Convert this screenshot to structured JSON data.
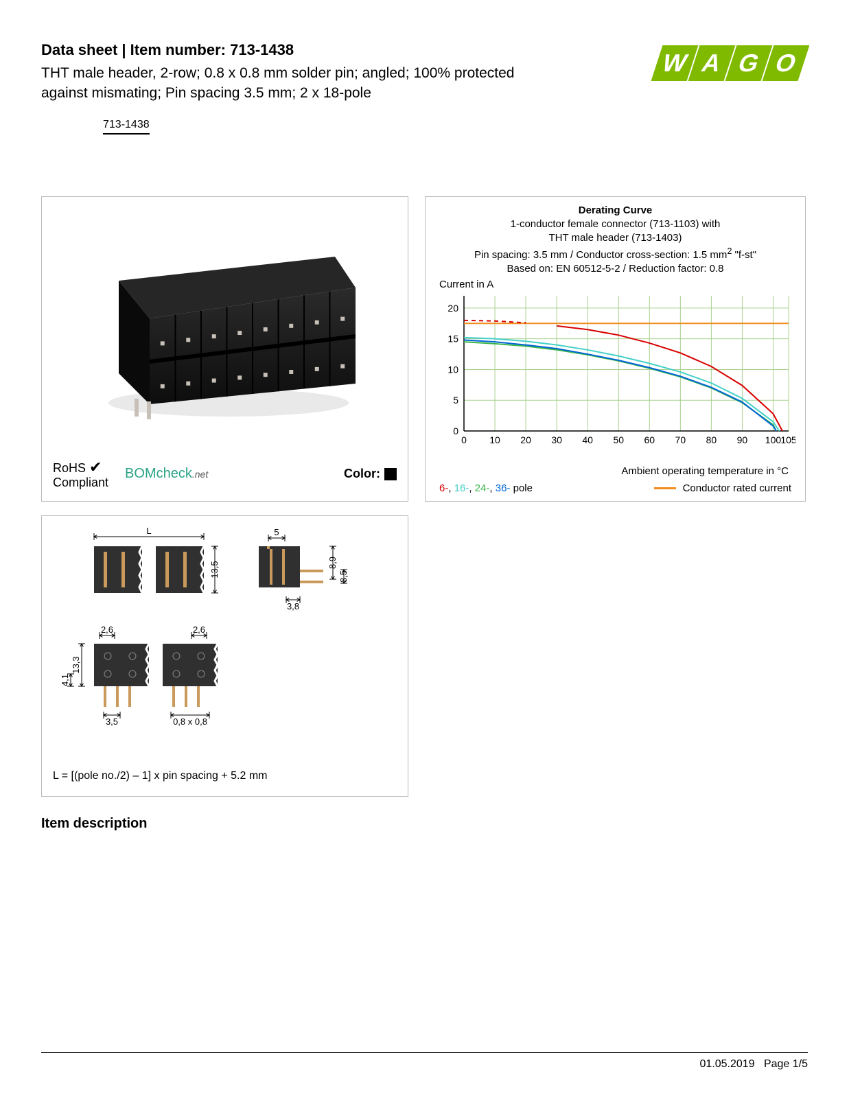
{
  "header": {
    "datasheet_title": "Data sheet  |  Item number: 713-1438",
    "product_desc": "THT male header, 2-row; 0.8 x 0.8 mm solder pin; angled; 100% protected against mismating; Pin spacing 3.5 mm; 2 x 18-pole",
    "item_code": "713-1438",
    "logo_text": "WAGO",
    "logo_color": "#7fba00"
  },
  "product_panel": {
    "rohs_line1": "RoHS",
    "rohs_line2": "Compliant",
    "check_glyph": "✔",
    "bomcheck_brand": "BOMcheck",
    "bomcheck_net": ".net",
    "color_label": "Color:",
    "color_swatch": "#000000",
    "connector": {
      "body_color": "#1a1a1a",
      "highlight_color": "#3a3a3a",
      "pin_color": "#c7c0b6",
      "columns": 8,
      "rows": 2
    }
  },
  "chart": {
    "title_bold": "Derating Curve",
    "title_l2": "1-conductor female connector (713-1103) with",
    "title_l3": "THT male header (713-1403)",
    "title_l4_pre": "Pin spacing: 3.5 mm / Conductor cross-section: 1.5 mm",
    "title_l4_sup": "2",
    "title_l4_post": " \"f-st\"",
    "title_l5": "Based on: EN 60512-5-2 / Reduction factor: 0.8",
    "y_label": "Current in A",
    "x_label": "Ambient operating temperature in °C",
    "xlim": [
      0,
      105
    ],
    "ylim": [
      0,
      22
    ],
    "x_ticks": [
      0,
      10,
      20,
      30,
      40,
      50,
      60,
      70,
      80,
      90,
      100,
      105
    ],
    "y_ticks": [
      0,
      5,
      10,
      15,
      20
    ],
    "grid_color": "#a8d08d",
    "axis_color": "#000",
    "background_color": "#ffffff",
    "font_size": 14,
    "series": {
      "conductor_rated": {
        "color": "#f28c1e",
        "width": 2,
        "dash": "none",
        "points": [
          [
            0,
            17.5
          ],
          [
            105,
            17.5
          ]
        ]
      },
      "p6": {
        "color": "#d80000",
        "width": 2,
        "dash_start": 20,
        "points": [
          [
            0,
            18
          ],
          [
            10,
            17.9
          ],
          [
            20,
            17.6
          ],
          [
            30,
            17.1
          ],
          [
            40,
            16.5
          ],
          [
            50,
            15.6
          ],
          [
            60,
            14.3
          ],
          [
            70,
            12.7
          ],
          [
            80,
            10.5
          ],
          [
            90,
            7.4
          ],
          [
            100,
            2.8
          ],
          [
            103,
            0
          ]
        ]
      },
      "p16": {
        "color": "#46d0c8",
        "width": 2,
        "points": [
          [
            0,
            15.2
          ],
          [
            10,
            15
          ],
          [
            20,
            14.6
          ],
          [
            30,
            14
          ],
          [
            40,
            13.2
          ],
          [
            50,
            12.2
          ],
          [
            60,
            11
          ],
          [
            70,
            9.6
          ],
          [
            80,
            7.8
          ],
          [
            90,
            5.3
          ],
          [
            100,
            1.5
          ],
          [
            102,
            0
          ]
        ]
      },
      "p24": {
        "color": "#3db54a",
        "width": 2,
        "points": [
          [
            0,
            14.5
          ],
          [
            10,
            14.2
          ],
          [
            20,
            13.8
          ],
          [
            30,
            13.2
          ],
          [
            40,
            12.4
          ],
          [
            50,
            11.4
          ],
          [
            60,
            10.2
          ],
          [
            70,
            8.8
          ],
          [
            80,
            7
          ],
          [
            90,
            4.6
          ],
          [
            100,
            1.0
          ],
          [
            101,
            0
          ]
        ]
      },
      "p36": {
        "color": "#0066d6",
        "width": 2,
        "points": [
          [
            0,
            14.8
          ],
          [
            10,
            14.5
          ],
          [
            20,
            14
          ],
          [
            30,
            13.4
          ],
          [
            40,
            12.5
          ],
          [
            50,
            11.5
          ],
          [
            60,
            10.3
          ],
          [
            70,
            8.9
          ],
          [
            80,
            7.1
          ],
          [
            90,
            4.7
          ],
          [
            100,
            0.8
          ],
          [
            101,
            0
          ]
        ]
      }
    },
    "legend": {
      "p6": {
        "label": "6-",
        "color": "#d80000"
      },
      "p16": {
        "label": "16-",
        "color": "#46d0c8"
      },
      "p24": {
        "label": "24-",
        "color": "#3db54a"
      },
      "p36": {
        "label": "36-",
        "color": "#0066d6"
      },
      "pole_suffix": " pole",
      "conductor_label": "Conductor rated current"
    }
  },
  "diagram": {
    "formula": "L = [(pole no./2) – 1] x pin spacing + 5.2 mm",
    "dims": {
      "L": "L",
      "h13_5": "13,5",
      "w5": "5",
      "h8_9": "8,9",
      "h3_5": "3,5",
      "w3_8": "3,8",
      "w2_6a": "2,6",
      "w2_6b": "2,6",
      "h13_3": "13,3",
      "h4_1": "4,1",
      "p3_5": "3,5",
      "pin": "0,8 x 0,8"
    },
    "body_color": "#303030",
    "pin_color": "#c99a5b",
    "dim_color": "#000"
  },
  "section_heading": "Item description",
  "footer": {
    "date": "01.05.2019",
    "page": "Page 1/5"
  }
}
